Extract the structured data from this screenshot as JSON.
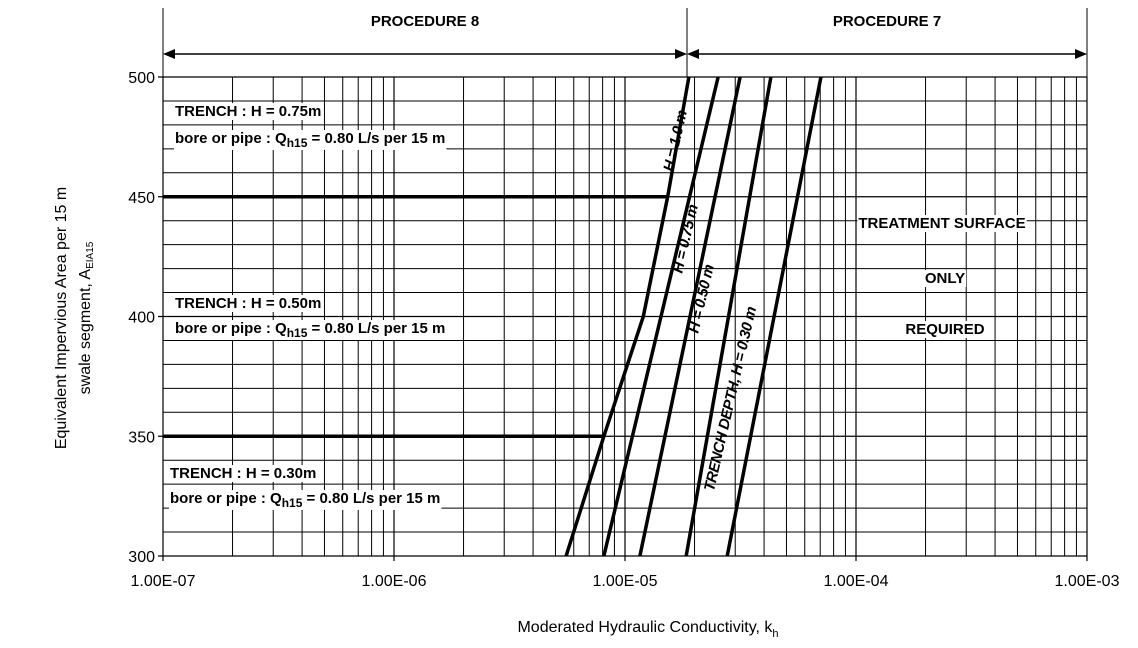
{
  "chart_data": {
    "type": "line",
    "xscale": "log",
    "grid": true,
    "xlim": [
      1e-07,
      0.001
    ],
    "ylim": [
      300,
      500
    ],
    "xticks": [
      {
        "value": 1e-07,
        "label": "1.00E-07"
      },
      {
        "value": 1e-06,
        "label": "1.00E-06"
      },
      {
        "value": 1e-05,
        "label": "1.00E-05"
      },
      {
        "value": 0.0001,
        "label": "1.00E-04"
      },
      {
        "value": 0.001,
        "label": "1.00E-03"
      }
    ],
    "yticks": [
      300,
      350,
      400,
      450,
      500
    ],
    "xminorticks": [
      2e-07,
      3e-07,
      4e-07,
      5e-07,
      6e-07,
      7e-07,
      8e-07,
      9e-07,
      2e-06,
      3e-06,
      4e-06,
      5e-06,
      6e-06,
      7e-06,
      8e-06,
      9e-06,
      2e-05,
      3e-05,
      4e-05,
      5e-05,
      6e-05,
      7e-05,
      8e-05,
      9e-05,
      0.0002,
      0.0003,
      0.0004,
      0.0005,
      0.0006,
      0.0007,
      0.0008,
      0.0009
    ],
    "yminorticks": [
      310,
      320,
      330,
      340,
      360,
      370,
      380,
      390,
      410,
      420,
      430,
      440,
      460,
      470,
      480,
      490
    ],
    "xlabel": {
      "text": "Moderated Hydraulic Conductivity, k",
      "sub": "h"
    },
    "ylabel": {
      "line1": "Equivalent Impervious Area per 15 m",
      "line2": "swale segment, A",
      "sub": "EIA15"
    },
    "series": [
      {
        "color": "#000000",
        "x": [
          5.56e-06,
          8.1e-06,
          1.2e-05,
          1.53e-05,
          1.89e-05
        ],
        "values": [
          300,
          350,
          400,
          450,
          500
        ]
      },
      {
        "color": "#000000",
        "x": [
          8.1e-06,
          2.53e-05
        ],
        "values": [
          300,
          500
        ]
      },
      {
        "color": "#000000",
        "x": [
          1.16e-05,
          3.15e-05
        ],
        "values": [
          300,
          500
        ]
      },
      {
        "color": "#000000",
        "x": [
          1.84e-05,
          4.28e-05
        ],
        "values": [
          300,
          500
        ]
      },
      {
        "color": "#000000",
        "x": [
          2.77e-05,
          7.05e-05
        ],
        "values": [
          300,
          500
        ]
      },
      {
        "color": "#000000",
        "x": [
          1e-07,
          1.53e-05
        ],
        "values": [
          450,
          450
        ]
      },
      {
        "color": "#000000",
        "x": [
          1e-07,
          8.1e-06
        ],
        "values": [
          350,
          350
        ]
      }
    ],
    "procedures": [
      "PROCEDURE 8",
      "PROCEDURE 7"
    ],
    "curve_labels": [
      "H = 1.0 m",
      "H = 0.75 m",
      "H = 0.50 m",
      "TRENCH DEPTH, H = 0.30 m"
    ],
    "notes": [
      {
        "title": "TRENCH : H = 0.75m",
        "q": "bore or pipe : Q",
        "sub": "h15",
        "rest": " = 0.80 L/s per 15 m"
      },
      {
        "title": "TRENCH : H = 0.50m",
        "q": "bore or pipe : Q",
        "sub": "h15",
        "rest": " = 0.80 L/s per 15 m"
      },
      {
        "title": "TRENCH : H = 0.30m",
        "q": "bore or pipe : Q",
        "sub": "h15",
        "rest": " = 0.80 L/s per 15 m"
      }
    ],
    "region_text": [
      "TREATMENT SURFACE",
      "ONLY",
      "REQUIRED"
    ]
  }
}
